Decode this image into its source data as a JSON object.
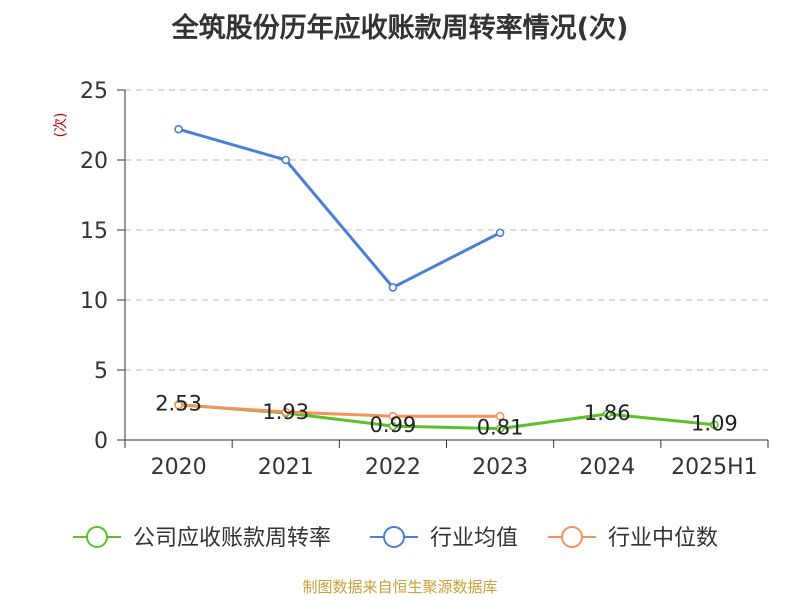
{
  "chart_data": {
    "type": "line",
    "title": "全筑股份历年应收账款周转率情况(次)",
    "ylabel": "(次)",
    "xlabel": "",
    "categories": [
      "2020",
      "2021",
      "2022",
      "2023",
      "2024",
      "2025H1"
    ],
    "ylim": [
      0,
      25
    ],
    "yticks": [
      0,
      5,
      10,
      15,
      20,
      25
    ],
    "grid": true,
    "legend_position": "bottom",
    "series": [
      {
        "name": "公司应收账款周转率",
        "color": "#5dbf2a",
        "values": [
          2.53,
          1.93,
          0.99,
          0.81,
          1.86,
          1.09
        ],
        "labels": [
          "2.53",
          "1.93",
          "0.99",
          "0.81",
          "1.86",
          "1.09"
        ]
      },
      {
        "name": "行业均值",
        "color": "#4a7fd6",
        "values": [
          22.2,
          20.0,
          10.9,
          14.8,
          null,
          null
        ]
      },
      {
        "name": "行业中位数",
        "color": "#f2935c",
        "values": [
          2.5,
          2.0,
          1.7,
          1.7,
          null,
          null
        ]
      }
    ]
  },
  "footer": {
    "source": "制图数据来自恒生聚源数据库"
  }
}
